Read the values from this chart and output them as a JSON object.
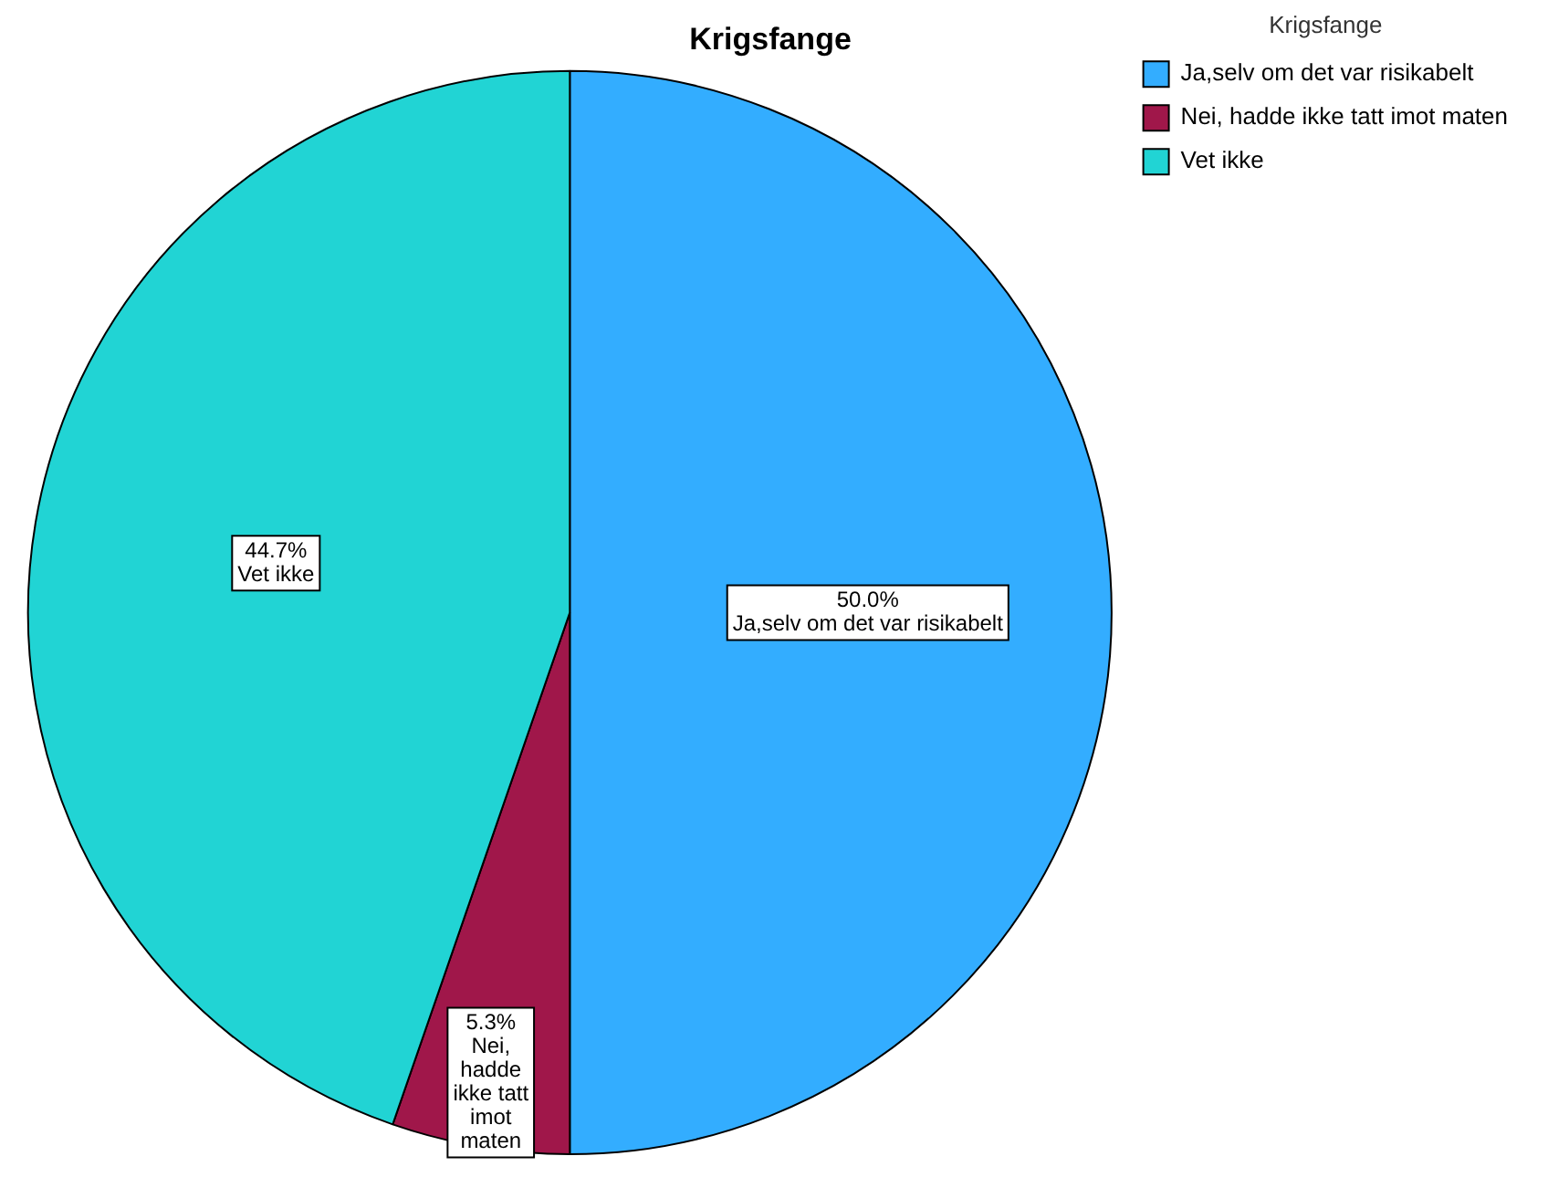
{
  "chart_data": {
    "type": "pie",
    "title": "Krigsfange",
    "legend_title": "Krigsfange",
    "legend": "top right",
    "categories": [
      "Ja,selv om det var risikabelt",
      "Nei, hadde ikke tatt imot maten",
      "Vet ikke"
    ],
    "values": [
      50.0,
      5.3,
      44.7
    ],
    "colors": [
      "#33adff",
      "#a0174a",
      "#21d4d4"
    ],
    "value_labels": [
      "50.0%",
      "5.3%",
      "44.7%"
    ]
  }
}
